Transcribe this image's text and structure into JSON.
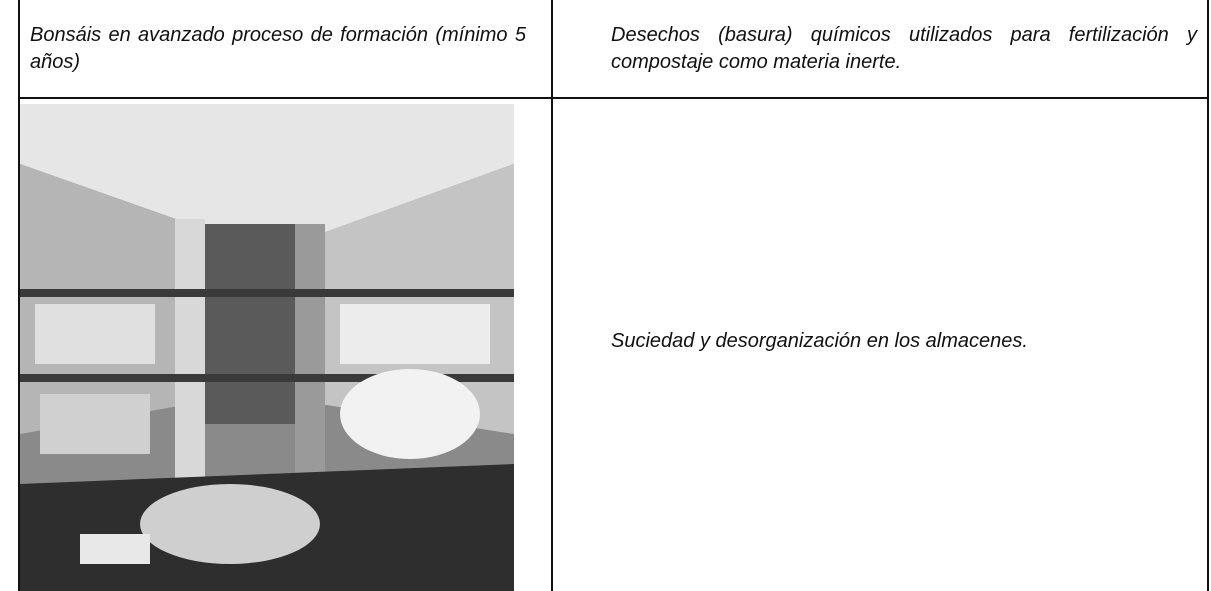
{
  "table": {
    "rows": [
      [
        "Bonsáis en avanzado proceso de formación (mínimo 5 años)",
        "Desechos (basura) químicos utilizados para fertilización y compostaje como materia inerte."
      ],
      [
        "Suciedad y desorganización en los almacenes."
      ]
    ]
  }
}
